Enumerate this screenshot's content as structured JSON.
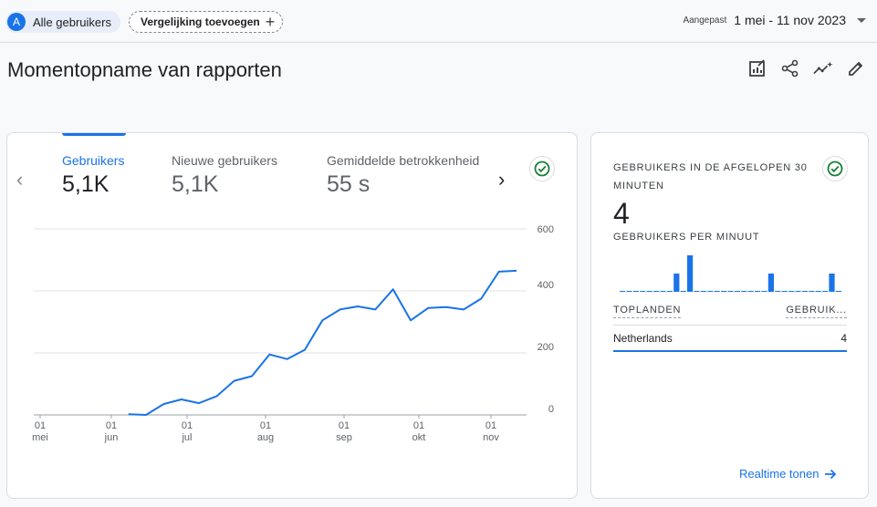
{
  "header": {
    "segment_avatar": "A",
    "segment_label": "Alle gebruikers",
    "add_comparison_label": "Vergelijking toevoegen",
    "date_mode": "Aangepast",
    "date_range": "1 mei - 11 nov 2023"
  },
  "page": {
    "title": "Momentopname van rapporten",
    "actions": [
      "customize-report-icon",
      "share-icon",
      "insights-icon",
      "edit-icon"
    ]
  },
  "overview": {
    "metrics": [
      {
        "label": "Gebruikers",
        "value": "5,1K",
        "active": true
      },
      {
        "label": "Nieuwe gebruikers",
        "value": "5,1K",
        "active": false
      },
      {
        "label": "Gemiddelde betrokkenheid",
        "value": "55 s",
        "active": false
      }
    ],
    "accent": "#1a73e8"
  },
  "chart_data": {
    "type": "line",
    "title": "",
    "xlabel": "",
    "ylabel": "",
    "ylim": [
      0,
      600
    ],
    "yticks": [
      "600",
      "400",
      "200",
      "0"
    ],
    "xticks": [
      {
        "day": "01",
        "month": "mei"
      },
      {
        "day": "01",
        "month": "jun"
      },
      {
        "day": "01",
        "month": "jul"
      },
      {
        "day": "01",
        "month": "aug"
      },
      {
        "day": "01",
        "month": "sep"
      },
      {
        "day": "01",
        "month": "okt"
      },
      {
        "day": "01",
        "month": "nov"
      }
    ],
    "grid": true,
    "series": [
      {
        "values": [
          null,
          null,
          null,
          null,
          null,
          2,
          0,
          35,
          50,
          38,
          60,
          110,
          125,
          195,
          180,
          210,
          305,
          340,
          350,
          340,
          405,
          305,
          345,
          348,
          340,
          375,
          462,
          465
        ],
        "color": "#1a73e8"
      }
    ]
  },
  "realtime": {
    "title": "GEBRUIKERS IN DE AFGELOPEN 30 MINUTEN",
    "value": "4",
    "per_minute_label": "GEBRUIKERS PER MINUUT",
    "per_minute_values": [
      0,
      0,
      0,
      0,
      0,
      0,
      0,
      0,
      1,
      0,
      2,
      0,
      0,
      0,
      0,
      0,
      0,
      0,
      0,
      0,
      0,
      0,
      1,
      0,
      0,
      0,
      0,
      0,
      0,
      0,
      0,
      1,
      0,
      0,
      0
    ],
    "table_headers": [
      "TOPLANDEN",
      "GEBRUIK..."
    ],
    "rows": [
      {
        "country": "Netherlands",
        "users": "4"
      }
    ],
    "link_label": "Realtime tonen"
  }
}
